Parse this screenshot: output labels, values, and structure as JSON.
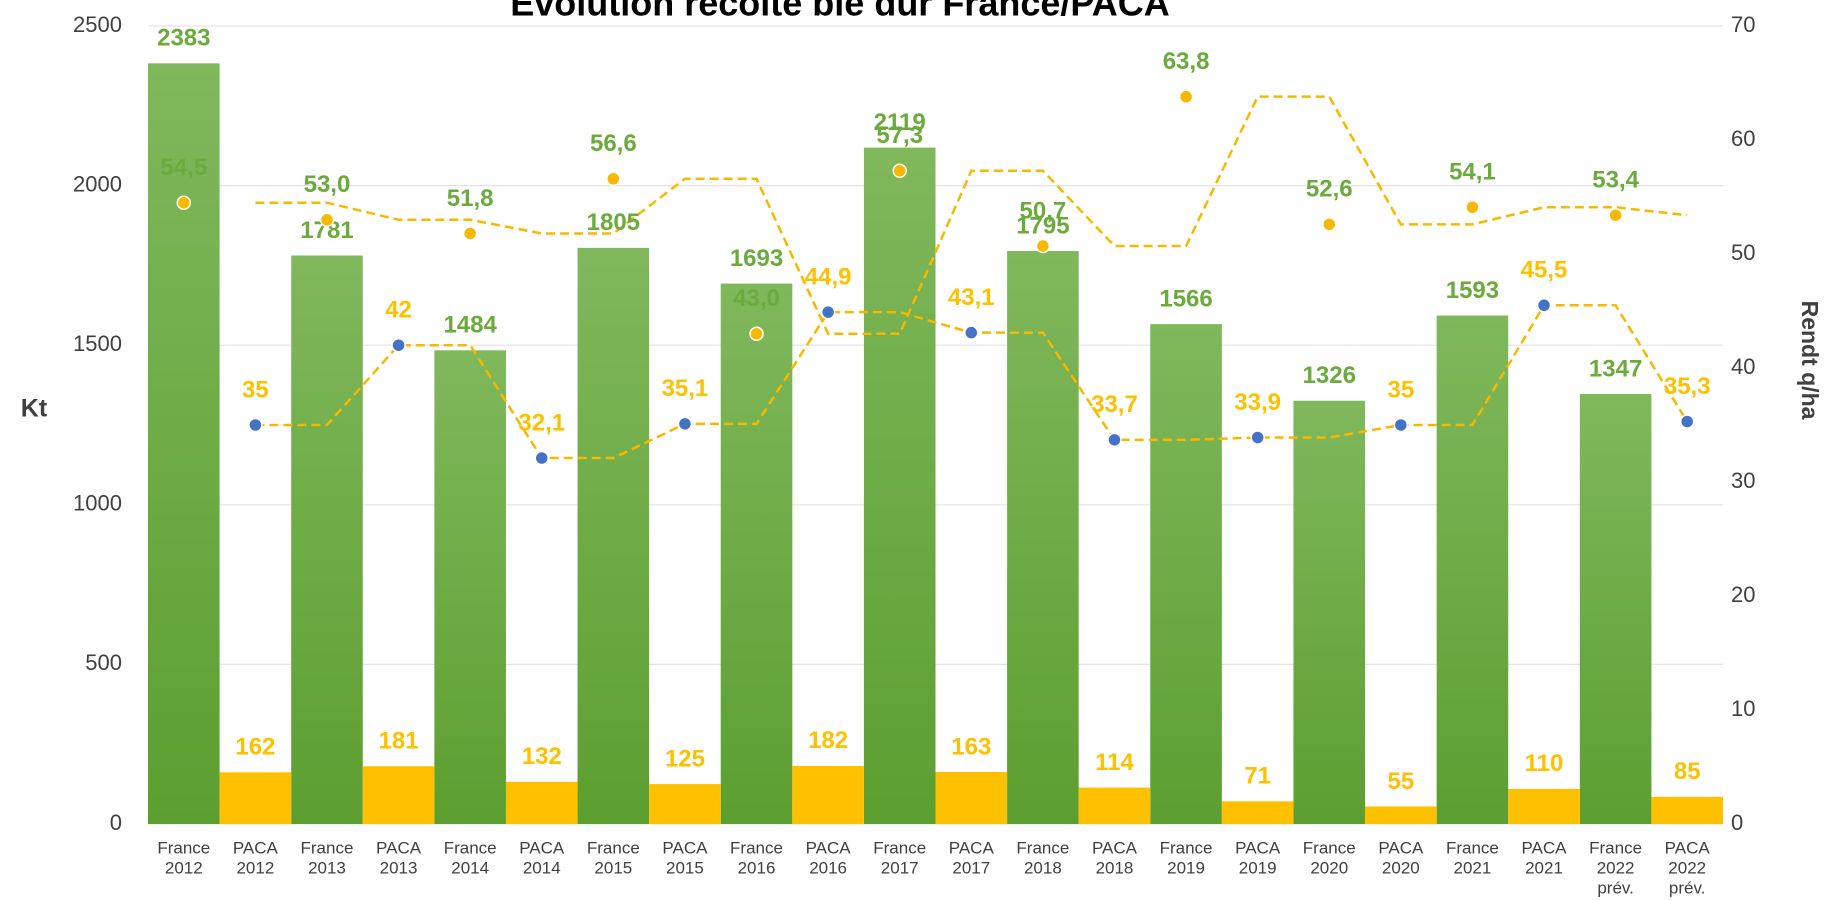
{
  "chart_data": {
    "type": "bar",
    "title": "Évolution récolte blé dur France/PACA",
    "y_label": "Kt",
    "y2_label": "Rendt q/ha",
    "categories": [
      [
        "France",
        "2012"
      ],
      [
        "PACA",
        "2012"
      ],
      [
        "France",
        "2013"
      ],
      [
        "PACA",
        "2013"
      ],
      [
        "France",
        "2014"
      ],
      [
        "PACA",
        "2014"
      ],
      [
        "France",
        "2015"
      ],
      [
        "PACA",
        "2015"
      ],
      [
        "France",
        "2016"
      ],
      [
        "PACA",
        "2016"
      ],
      [
        "France",
        "2017"
      ],
      [
        "PACA",
        "2017"
      ],
      [
        "France",
        "2018"
      ],
      [
        "PACA",
        "2018"
      ],
      [
        "France",
        "2019"
      ],
      [
        "PACA",
        "2019"
      ],
      [
        "France",
        "2020"
      ],
      [
        "PACA",
        "2020"
      ],
      [
        "France",
        "2021"
      ],
      [
        "PACA",
        "2021"
      ],
      [
        "France",
        "2022",
        "prév."
      ],
      [
        "PACA",
        "2022",
        "prév."
      ]
    ],
    "series": [
      {
        "type": "bar",
        "color": "#6aab3c",
        "label_color": "#6aab3c",
        "values": [
          2383,
          null,
          1781,
          null,
          1484,
          null,
          1805,
          null,
          1693,
          null,
          2119,
          null,
          1795,
          null,
          1566,
          null,
          1326,
          null,
          1593,
          null,
          1347,
          null
        ]
      },
      {
        "type": "bar",
        "color": "#ffc000",
        "label_color": "#ffc000",
        "values": [
          null,
          162,
          null,
          181,
          null,
          132,
          null,
          125,
          null,
          182,
          null,
          163,
          null,
          114,
          null,
          71,
          null,
          55,
          null,
          110,
          null,
          85
        ]
      },
      {
        "type": "line",
        "axis": "y2",
        "color": "#f7b800",
        "label_color": "#6aab3c",
        "dashed_trend": true,
        "values": [
          54.5,
          null,
          53.0,
          null,
          51.8,
          null,
          56.6,
          null,
          43.0,
          null,
          57.3,
          null,
          50.7,
          null,
          63.8,
          null,
          52.6,
          null,
          54.1,
          null,
          53.4,
          null
        ],
        "value_labels": [
          "54,5",
          null,
          "53,0",
          null,
          "51,8",
          null,
          "56,6",
          null,
          "43,0",
          null,
          "57,3",
          null,
          "50,7",
          null,
          "63,8",
          null,
          "52,6",
          null,
          "54,1",
          null,
          "53,4",
          null
        ]
      },
      {
        "type": "line",
        "axis": "y2",
        "color": "#4472c4",
        "label_color": "#ffc000",
        "dashed_trend": true,
        "values": [
          null,
          35,
          null,
          42,
          null,
          32.1,
          null,
          35.1,
          null,
          44.9,
          null,
          43.1,
          null,
          33.7,
          null,
          33.9,
          null,
          35,
          null,
          45.5,
          null,
          35.3
        ],
        "value_labels": [
          null,
          "35",
          null,
          "42",
          null,
          "32,1",
          null,
          "35,1",
          null,
          "44,9",
          null,
          "43,1",
          null,
          "33,7",
          null,
          "33,9",
          null,
          "35",
          null,
          "45,5",
          null,
          "35,3"
        ]
      }
    ],
    "ylim": [
      0,
      2500
    ],
    "yticks": [
      0,
      500,
      1000,
      1500,
      2000,
      2500
    ],
    "y2lim": [
      0,
      70
    ],
    "y2ticks": [
      0,
      10,
      20,
      30,
      40,
      50,
      60,
      70
    ],
    "grid": true
  }
}
